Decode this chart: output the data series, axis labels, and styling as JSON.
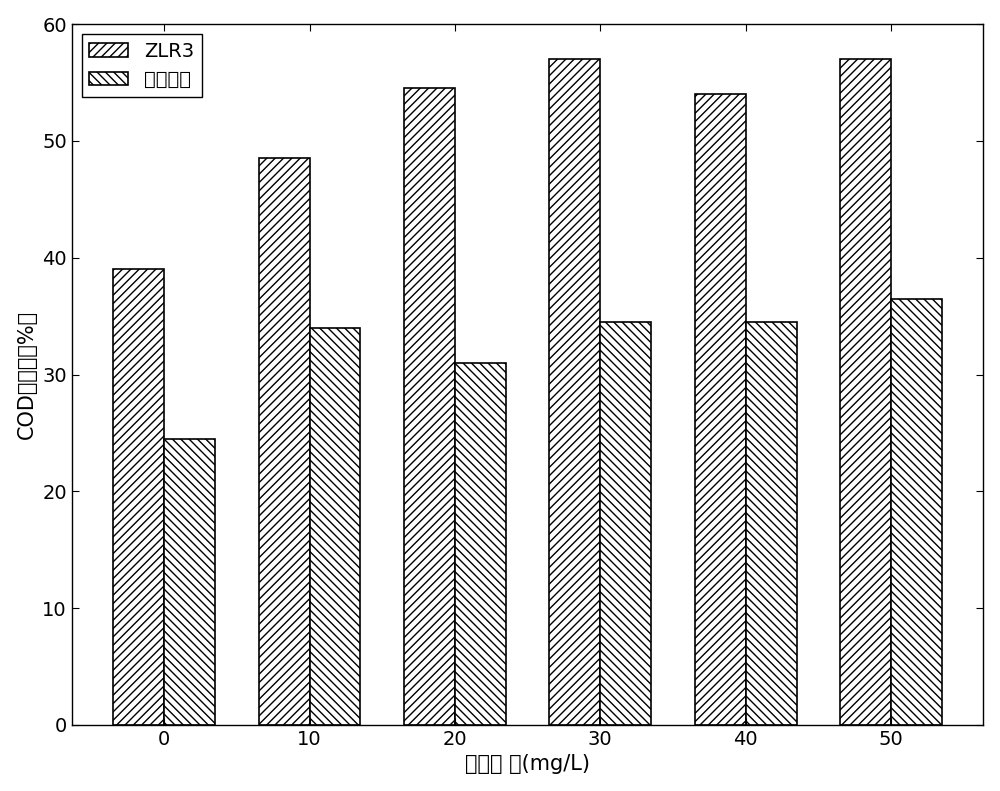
{
  "categories": [
    0,
    10,
    20,
    30,
    40,
    50
  ],
  "zlr3_values": [
    39.0,
    48.5,
    54.5,
    57.0,
    54.0,
    57.0
  ],
  "sludge_values": [
    24.5,
    34.0,
    31.0,
    34.5,
    34.5,
    36.5
  ],
  "xlabel": "乙腈浓 度(mg/L)",
  "ylabel": "COD去除率（%）",
  "ylim": [
    0,
    60
  ],
  "yticks": [
    0,
    10,
    20,
    30,
    40,
    50,
    60
  ],
  "legend_zlr3": "ZLR3",
  "legend_sludge": "活性污泥",
  "bar_width": 0.35,
  "bar_color": "white",
  "bar_edgecolor": "black",
  "hatch_zlr3": "////",
  "hatch_sludge": "\\\\\\\\",
  "label_fontsize": 15,
  "tick_fontsize": 14,
  "legend_fontsize": 14,
  "figure_width": 10.0,
  "figure_height": 7.91,
  "dpi": 100
}
